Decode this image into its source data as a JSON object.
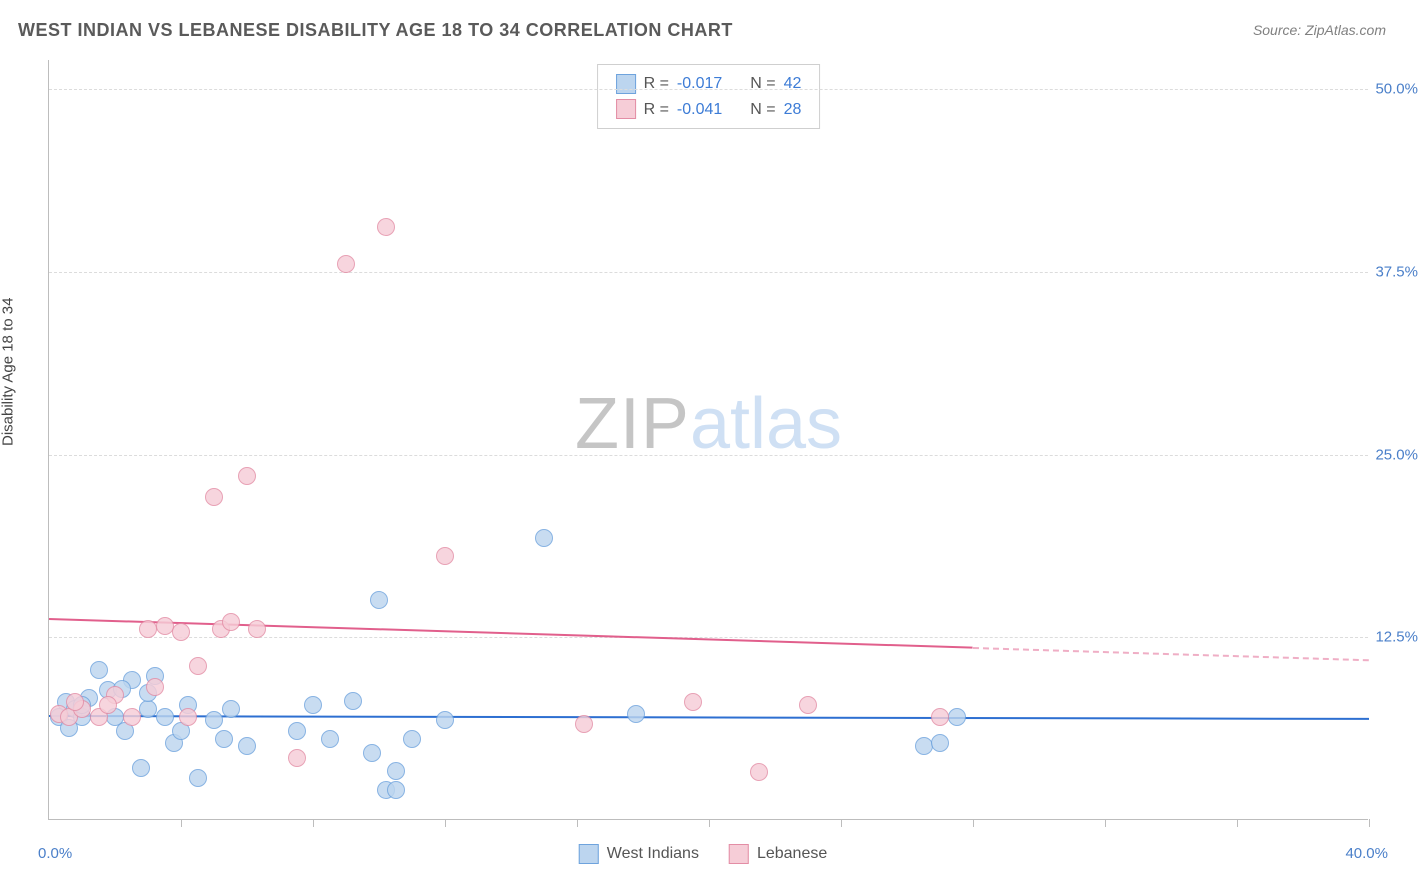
{
  "title": "WEST INDIAN VS LEBANESE DISABILITY AGE 18 TO 34 CORRELATION CHART",
  "source": "Source: ZipAtlas.com",
  "y_axis_label": "Disability Age 18 to 34",
  "x_axis": {
    "min": 0,
    "max": 40,
    "left_label": "0.0%",
    "right_label": "40.0%",
    "tick_step": 4
  },
  "y_axis": {
    "min": 0,
    "max": 52,
    "ticks": [
      {
        "v": 12.5,
        "label": "12.5%"
      },
      {
        "v": 25.0,
        "label": "25.0%"
      },
      {
        "v": 37.5,
        "label": "37.5%"
      },
      {
        "v": 50.0,
        "label": "50.0%"
      }
    ]
  },
  "watermark": {
    "part1": "ZIP",
    "part2": "atlas"
  },
  "series": [
    {
      "key": "west_indians",
      "name": "West Indians",
      "fill": "#bcd5ef",
      "stroke": "#6ea3dd",
      "trend_color": "#2d6fd1",
      "marker_radius": 9,
      "R": "-0.017",
      "N": "42",
      "trend": {
        "x0": 0,
        "y0": 7.2,
        "x1": 40,
        "y1": 7.0,
        "solid_until_x": 40
      },
      "points": [
        [
          0.3,
          7.0
        ],
        [
          0.5,
          8.0
        ],
        [
          0.6,
          6.2
        ],
        [
          0.8,
          7.5
        ],
        [
          1.0,
          7.0
        ],
        [
          1.2,
          8.3
        ],
        [
          1.5,
          10.2
        ],
        [
          1.8,
          8.8
        ],
        [
          2.0,
          7.0
        ],
        [
          2.3,
          6.0
        ],
        [
          2.5,
          9.5
        ],
        [
          2.8,
          3.5
        ],
        [
          3.0,
          7.5
        ],
        [
          3.2,
          9.8
        ],
        [
          3.5,
          7.0
        ],
        [
          3.8,
          5.2
        ],
        [
          4.0,
          6.0
        ],
        [
          4.2,
          7.8
        ],
        [
          4.5,
          2.8
        ],
        [
          5.0,
          6.8
        ],
        [
          5.3,
          5.5
        ],
        [
          5.5,
          7.5
        ],
        [
          6.0,
          5.0
        ],
        [
          7.5,
          6.0
        ],
        [
          8.0,
          7.8
        ],
        [
          8.5,
          5.5
        ],
        [
          9.2,
          8.1
        ],
        [
          9.8,
          4.5
        ],
        [
          10.0,
          15.0
        ],
        [
          10.2,
          2.0
        ],
        [
          10.5,
          3.3
        ],
        [
          10.5,
          2.0
        ],
        [
          11.0,
          5.5
        ],
        [
          12.0,
          6.8
        ],
        [
          15.0,
          19.2
        ],
        [
          17.8,
          7.2
        ],
        [
          26.5,
          5.0
        ],
        [
          27.0,
          5.2
        ],
        [
          27.5,
          7.0
        ],
        [
          1.0,
          7.8
        ],
        [
          2.2,
          8.9
        ],
        [
          3.0,
          8.6
        ]
      ]
    },
    {
      "key": "lebanese",
      "name": "Lebanese",
      "fill": "#f6cdd7",
      "stroke": "#e38da5",
      "trend_color": "#e15f8c",
      "marker_radius": 9,
      "R": "-0.041",
      "N": "28",
      "trend": {
        "x0": 0,
        "y0": 13.8,
        "x1": 40,
        "y1": 11.0,
        "solid_until_x": 28
      },
      "points": [
        [
          0.3,
          7.2
        ],
        [
          0.6,
          7.0
        ],
        [
          1.0,
          7.5
        ],
        [
          1.5,
          7.0
        ],
        [
          2.0,
          8.5
        ],
        [
          2.5,
          7.0
        ],
        [
          3.0,
          13.0
        ],
        [
          3.2,
          9.0
        ],
        [
          3.5,
          13.2
        ],
        [
          4.0,
          12.8
        ],
        [
          4.2,
          7.0
        ],
        [
          4.5,
          10.5
        ],
        [
          5.0,
          22.0
        ],
        [
          5.2,
          13.0
        ],
        [
          5.5,
          13.5
        ],
        [
          6.0,
          23.5
        ],
        [
          6.3,
          13.0
        ],
        [
          7.5,
          4.2
        ],
        [
          9.0,
          38.0
        ],
        [
          10.2,
          40.5
        ],
        [
          12.0,
          18.0
        ],
        [
          16.2,
          6.5
        ],
        [
          19.5,
          8.0
        ],
        [
          21.5,
          3.2
        ],
        [
          23.0,
          7.8
        ],
        [
          27.0,
          7.0
        ],
        [
          0.8,
          8.0
        ],
        [
          1.8,
          7.8
        ]
      ]
    }
  ],
  "legend_top": {
    "r_label": "R =",
    "n_label": "N ="
  },
  "colors": {
    "title": "#5a5a5a",
    "tick_label": "#4a7fc9",
    "grid": "#dcdcdc",
    "axis": "#bdbdbd",
    "background": "#ffffff"
  }
}
